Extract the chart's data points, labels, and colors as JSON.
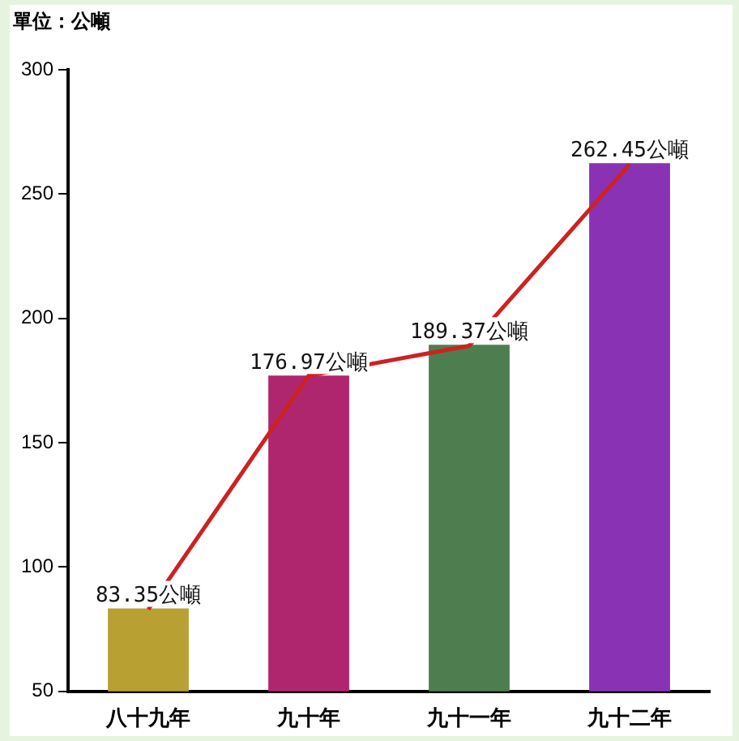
{
  "chart_data": {
    "type": "bar",
    "annotations": [
      "單位：公噸"
    ],
    "categories": [
      "八十九年",
      "九十年",
      "九十一年",
      "九十二年"
    ],
    "series": [
      {
        "colors": [
          "#b8a032",
          "#b0266e",
          "#4e7e50",
          "#8a32b4"
        ],
        "values": [
          83.35,
          176.97,
          189.37,
          262.45
        ],
        "value_labels": [
          "83.35公噸",
          "176.97公噸",
          "189.37公噸",
          "262.45公噸"
        ]
      },
      {
        "type": "line",
        "color": "#cc2222",
        "values": [
          83,
          177,
          189,
          262
        ],
        "marker": "none"
      }
    ],
    "ylim": [
      50,
      300
    ],
    "yticks": [
      50,
      100,
      150,
      200,
      250,
      300
    ],
    "grid": false,
    "legend": false
  }
}
